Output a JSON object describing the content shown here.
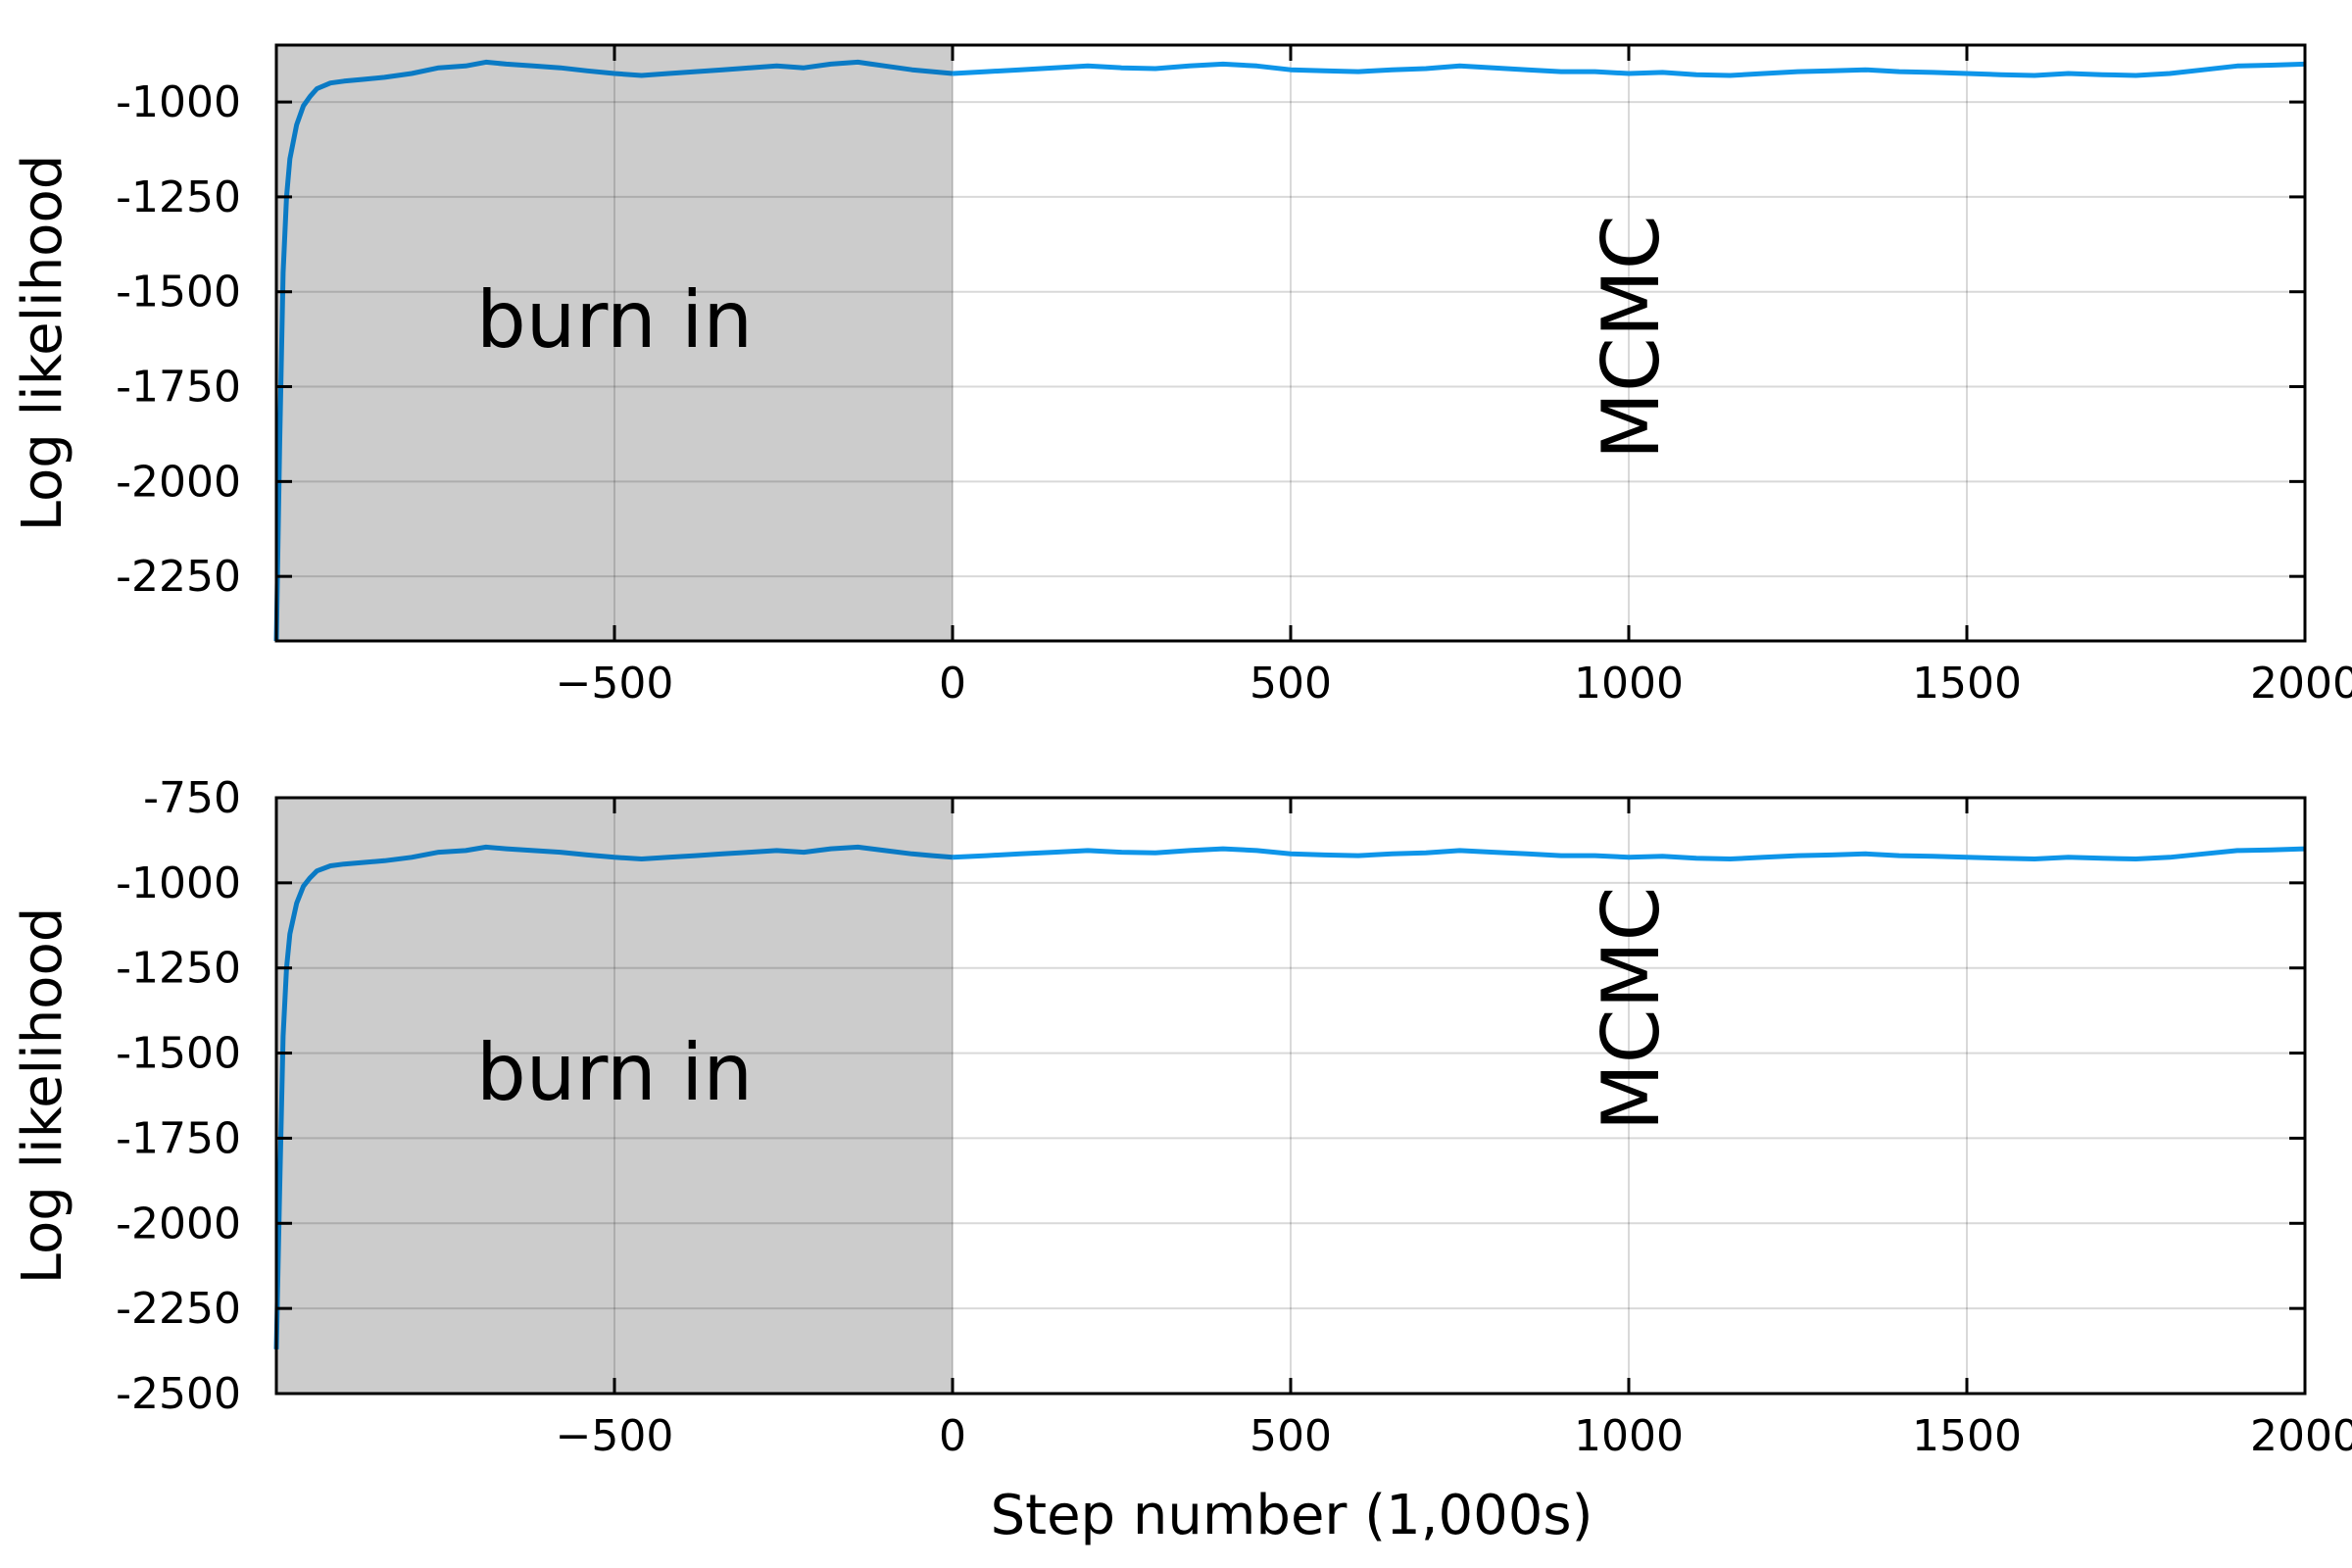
{
  "chart_data": [
    {
      "type": "line",
      "ylabel": "Log likelihood",
      "xlabel": "",
      "xlim": [
        -1000,
        2000
      ],
      "ylim": [
        -2420,
        -850
      ],
      "x_ticks": [
        -500,
        0,
        500,
        1000,
        1500,
        2000
      ],
      "x_tick_labels": [
        "−500",
        "0",
        "500",
        "1000",
        "1500",
        "2000"
      ],
      "y_ticks": [
        -1000,
        -1250,
        -1500,
        -1750,
        -2000,
        -2250
      ],
      "y_tick_labels": [
        "-1000",
        "-1250",
        "-1500",
        "-1750",
        "-2000",
        "-2250"
      ],
      "grid": true,
      "shaded_region": {
        "x": [
          -1000,
          0
        ],
        "label": "burn in",
        "color": "#cccccc"
      },
      "region_annotation": {
        "label": "MCMC",
        "x": 1000,
        "y": -1620,
        "rotation": -90
      },
      "series": [
        {
          "color_burn": "#0a7ac4",
          "color_main": "#0e95e9",
          "x": [
            -1000,
            -995,
            -990,
            -985,
            -980,
            -970,
            -960,
            -950,
            -940,
            -920,
            -900,
            -870,
            -840,
            -800,
            -760,
            -720,
            -690,
            -660,
            -620,
            -580,
            -540,
            -500,
            -460,
            -420,
            -380,
            -340,
            -300,
            -260,
            -220,
            -180,
            -140,
            -120,
            -100,
            -60,
            -30,
            0,
            50,
            100,
            150,
            200,
            250,
            300,
            350,
            400,
            450,
            500,
            550,
            600,
            650,
            700,
            750,
            800,
            850,
            900,
            950,
            1000,
            1050,
            1100,
            1150,
            1200,
            1250,
            1300,
            1350,
            1400,
            1450,
            1500,
            1550,
            1600,
            1650,
            1700,
            1750,
            1800,
            1850,
            1900,
            1950,
            2000
          ],
          "y": [
            -2420,
            -1900,
            -1450,
            -1250,
            -1150,
            -1060,
            -1010,
            -985,
            -965,
            -950,
            -945,
            -940,
            -935,
            -925,
            -910,
            -905,
            -895,
            -900,
            -905,
            -910,
            -918,
            -925,
            -930,
            -925,
            -920,
            -915,
            -910,
            -905,
            -910,
            -900,
            -895,
            -900,
            -905,
            -915,
            -920,
            -925,
            -920,
            -915,
            -910,
            -905,
            -910,
            -912,
            -905,
            -900,
            -905,
            -915,
            -918,
            -920,
            -915,
            -912,
            -905,
            -910,
            -915,
            -920,
            -920,
            -925,
            -922,
            -928,
            -930,
            -925,
            -920,
            -918,
            -915,
            -920,
            -922,
            -925,
            -928,
            -930,
            -925,
            -928,
            -930,
            -925,
            -915,
            -905,
            -903,
            -900
          ]
        }
      ]
    },
    {
      "type": "line",
      "ylabel": "Log likelihood",
      "xlabel": "Step number (1,000s)",
      "xlim": [
        -1000,
        2000
      ],
      "ylim": [
        -2500,
        -750
      ],
      "x_ticks": [
        -500,
        0,
        500,
        1000,
        1500,
        2000
      ],
      "x_tick_labels": [
        "−500",
        "0",
        "500",
        "1000",
        "1500",
        "2000"
      ],
      "y_ticks": [
        -750,
        -1000,
        -1250,
        -1500,
        -1750,
        -2000,
        -2250,
        -2500
      ],
      "y_tick_labels": [
        "-750",
        "-1000",
        "-1250",
        "-1500",
        "-1750",
        "-2000",
        "-2250",
        "-2500"
      ],
      "grid": true,
      "shaded_region": {
        "x": [
          -1000,
          0
        ],
        "label": "burn in",
        "color": "#cccccc"
      },
      "region_annotation": {
        "label": "MCMC",
        "x": 1000,
        "y": -1370,
        "rotation": -90
      },
      "series": [
        {
          "color_burn": "#0a7ac4",
          "color_main": "#0e95e9",
          "x": [
            -1000,
            -995,
            -990,
            -985,
            -980,
            -970,
            -960,
            -950,
            -940,
            -920,
            -900,
            -870,
            -840,
            -800,
            -760,
            -720,
            -690,
            -660,
            -620,
            -580,
            -540,
            -500,
            -460,
            -420,
            -380,
            -340,
            -300,
            -260,
            -220,
            -180,
            -140,
            -120,
            -100,
            -60,
            -30,
            0,
            50,
            100,
            150,
            200,
            250,
            300,
            350,
            400,
            450,
            500,
            550,
            600,
            650,
            700,
            750,
            800,
            850,
            900,
            950,
            1000,
            1050,
            1100,
            1150,
            1200,
            1250,
            1300,
            1350,
            1400,
            1450,
            1500,
            1550,
            1600,
            1650,
            1700,
            1750,
            1800,
            1850,
            1900,
            1950,
            2000
          ],
          "y": [
            -2370,
            -1900,
            -1450,
            -1250,
            -1150,
            -1060,
            -1010,
            -985,
            -965,
            -950,
            -945,
            -940,
            -935,
            -925,
            -910,
            -905,
            -895,
            -900,
            -905,
            -910,
            -918,
            -925,
            -930,
            -925,
            -920,
            -915,
            -910,
            -905,
            -910,
            -900,
            -895,
            -900,
            -905,
            -915,
            -920,
            -925,
            -920,
            -915,
            -910,
            -905,
            -910,
            -912,
            -905,
            -900,
            -905,
            -915,
            -918,
            -920,
            -915,
            -912,
            -905,
            -910,
            -915,
            -920,
            -920,
            -925,
            -922,
            -928,
            -930,
            -925,
            -920,
            -918,
            -915,
            -920,
            -922,
            -925,
            -928,
            -930,
            -925,
            -928,
            -930,
            -925,
            -915,
            -905,
            -903,
            -900
          ]
        }
      ]
    }
  ]
}
